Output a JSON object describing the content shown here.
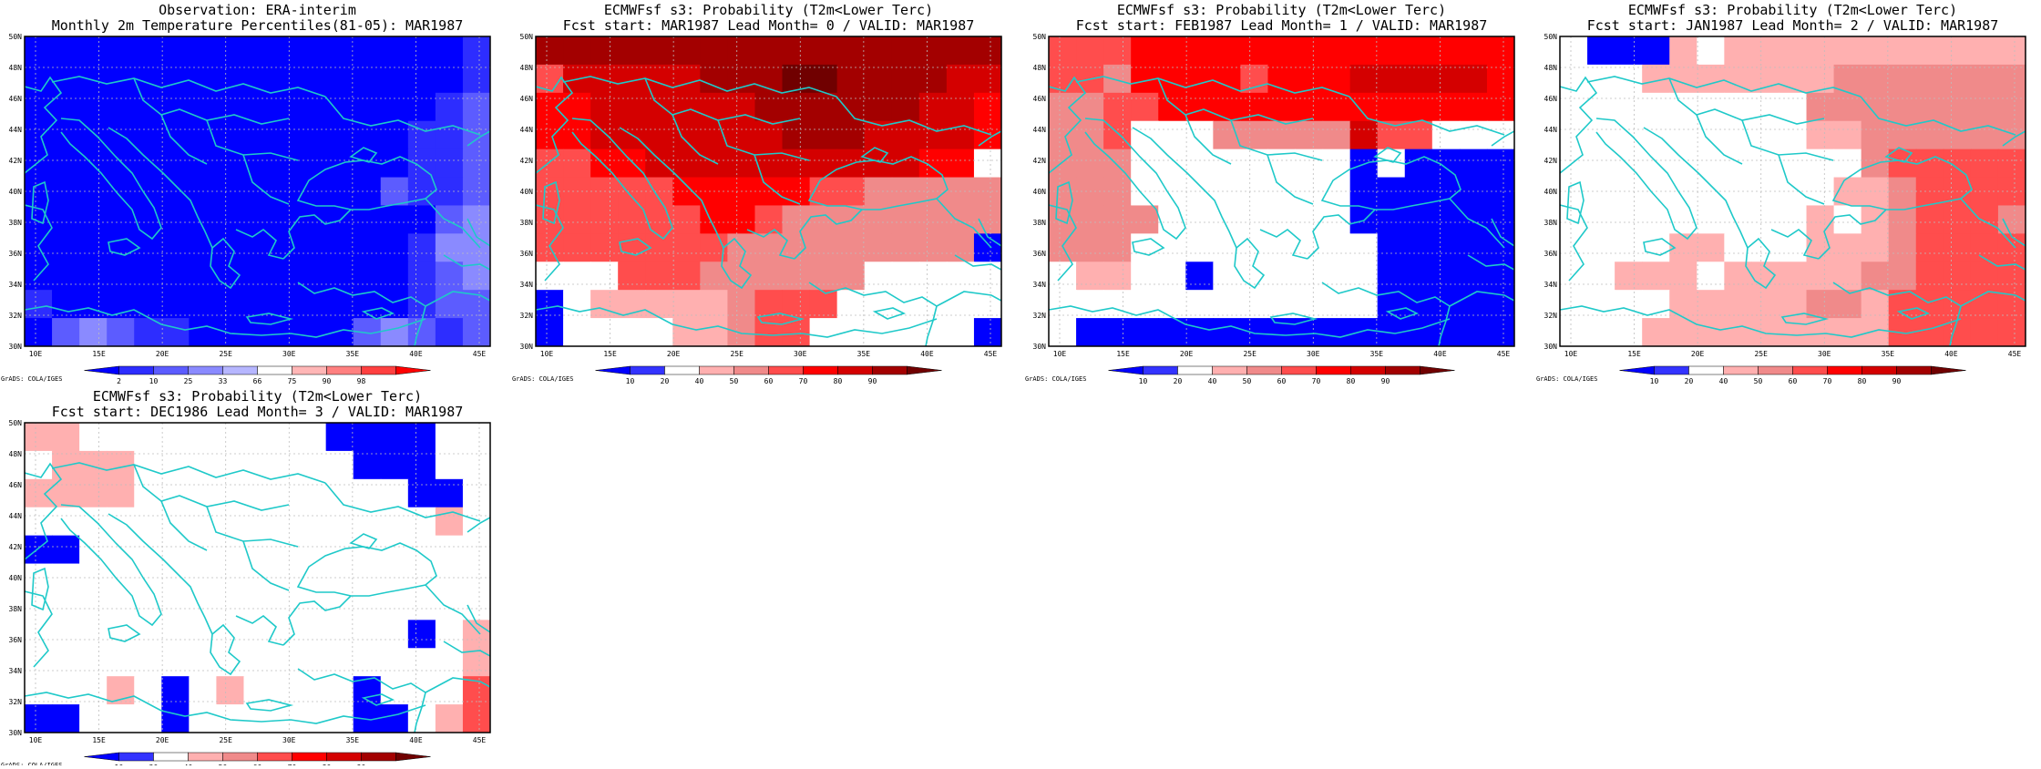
{
  "axes": {
    "lon_ticks": [
      "10E",
      "15E",
      "20E",
      "25E",
      "30E",
      "35E",
      "40E",
      "45E"
    ],
    "lat_ticks": [
      "30N",
      "32N",
      "34N",
      "36N",
      "38N",
      "40N",
      "42N",
      "44N",
      "46N",
      "48N",
      "50N"
    ]
  },
  "credit": "GrADS: COLA/IGES",
  "palettes": {
    "percentile": {
      "labels": [
        "2",
        "10",
        "25",
        "33",
        "66",
        "75",
        "90",
        "98"
      ],
      "colors": [
        "#0000ff",
        "#2d2dff",
        "#5c5cff",
        "#8a8aff",
        "#b6b6ff",
        "#ffffff",
        "#ffb6b6",
        "#ff8080",
        "#ff4040",
        "#ff0000"
      ]
    },
    "probability": {
      "labels": [
        "10",
        "20",
        "40",
        "50",
        "60",
        "70",
        "80",
        "90"
      ],
      "colors": [
        "#0000ff",
        "#3333ff",
        "#ffffff",
        "#ffb0b0",
        "#f08a8a",
        "#ff4d4d",
        "#ff0000",
        "#d40000",
        "#a30000",
        "#700000"
      ]
    }
  },
  "panels": [
    {
      "id": "obs",
      "title_lines": [
        "Observation: ERA-interim",
        "Monthly 2m Temperature Percentiles(81-05): MAR1987"
      ],
      "palette": "percentile",
      "grid": [
        [
          0,
          0,
          0,
          0,
          0,
          0,
          0,
          0,
          0,
          0,
          0,
          0,
          0,
          0,
          0,
          0,
          1
        ],
        [
          0,
          0,
          0,
          0,
          0,
          0,
          0,
          0,
          0,
          0,
          0,
          0,
          0,
          0,
          0,
          0,
          1
        ],
        [
          0,
          0,
          0,
          0,
          0,
          0,
          0,
          0,
          0,
          0,
          0,
          0,
          0,
          0,
          0,
          1,
          2
        ],
        [
          0,
          0,
          0,
          0,
          0,
          0,
          0,
          0,
          0,
          0,
          0,
          0,
          0,
          0,
          1,
          1,
          2
        ],
        [
          0,
          0,
          0,
          0,
          0,
          0,
          0,
          0,
          0,
          0,
          0,
          0,
          0,
          0,
          1,
          1,
          2
        ],
        [
          0,
          0,
          0,
          0,
          0,
          0,
          0,
          0,
          0,
          0,
          0,
          0,
          0,
          2,
          1,
          1,
          2
        ],
        [
          0,
          0,
          0,
          0,
          0,
          0,
          0,
          0,
          0,
          0,
          0,
          0,
          0,
          0,
          0,
          2,
          3
        ],
        [
          0,
          0,
          0,
          0,
          0,
          0,
          0,
          0,
          0,
          0,
          0,
          0,
          0,
          0,
          1,
          3,
          3
        ],
        [
          0,
          0,
          0,
          0,
          0,
          0,
          0,
          0,
          0,
          0,
          0,
          0,
          0,
          0,
          1,
          2,
          3
        ],
        [
          1,
          0,
          0,
          0,
          0,
          0,
          0,
          0,
          0,
          0,
          0,
          0,
          0,
          0,
          1,
          2,
          2
        ],
        [
          0,
          2,
          3,
          2,
          1,
          1,
          0,
          0,
          0,
          0,
          0,
          0,
          2,
          3,
          2,
          1,
          2
        ]
      ]
    },
    {
      "id": "lead0",
      "title_lines": [
        "ECMWFsf s3: Probability (T2m<Lower Terc)",
        "Fcst start: MAR1987   Lead Month= 0 / VALID: MAR1987"
      ],
      "palette": "probability",
      "grid": [
        [
          8,
          8,
          8,
          8,
          8,
          8,
          8,
          8,
          8,
          8,
          8,
          8,
          8,
          8,
          8,
          8,
          8
        ],
        [
          5,
          7,
          7,
          7,
          7,
          7,
          8,
          8,
          8,
          9,
          9,
          8,
          8,
          8,
          8,
          7,
          7
        ],
        [
          6,
          6,
          7,
          7,
          7,
          7,
          7,
          7,
          8,
          8,
          8,
          8,
          8,
          8,
          7,
          7,
          6
        ],
        [
          6,
          6,
          7,
          7,
          7,
          7,
          7,
          7,
          7,
          8,
          8,
          8,
          7,
          7,
          7,
          7,
          6
        ],
        [
          5,
          5,
          6,
          6,
          7,
          7,
          7,
          7,
          7,
          7,
          7,
          7,
          7,
          7,
          6,
          6,
          2
        ],
        [
          5,
          5,
          5,
          5,
          5,
          6,
          6,
          6,
          6,
          6,
          5,
          5,
          4,
          4,
          4,
          4,
          4
        ],
        [
          5,
          5,
          5,
          5,
          5,
          5,
          6,
          6,
          5,
          4,
          4,
          4,
          4,
          4,
          4,
          4,
          4
        ],
        [
          5,
          5,
          5,
          5,
          5,
          5,
          5,
          4,
          4,
          4,
          4,
          4,
          4,
          4,
          4,
          4,
          0
        ],
        [
          2,
          2,
          2,
          5,
          5,
          5,
          4,
          4,
          4,
          4,
          4,
          4,
          2,
          2,
          2,
          2,
          2
        ],
        [
          0,
          2,
          3,
          3,
          3,
          3,
          3,
          4,
          5,
          5,
          5,
          2,
          2,
          2,
          2,
          2,
          2
        ],
        [
          0,
          2,
          2,
          2,
          2,
          3,
          3,
          4,
          5,
          5,
          2,
          2,
          2,
          2,
          2,
          2,
          0
        ]
      ]
    },
    {
      "id": "lead1",
      "title_lines": [
        "ECMWFsf s3: Probability (T2m<Lower Terc)",
        "Fcst start: FEB1987   Lead Month= 1 / VALID: MAR1987"
      ],
      "palette": "probability",
      "grid": [
        [
          5,
          5,
          5,
          6,
          6,
          6,
          6,
          6,
          6,
          6,
          6,
          6,
          6,
          6,
          6,
          6,
          6
        ],
        [
          5,
          5,
          4,
          6,
          6,
          6,
          6,
          5,
          6,
          6,
          6,
          7,
          7,
          7,
          7,
          7,
          6
        ],
        [
          4,
          4,
          5,
          5,
          6,
          6,
          6,
          6,
          6,
          6,
          6,
          6,
          6,
          6,
          6,
          6,
          6
        ],
        [
          4,
          4,
          5,
          2,
          2,
          2,
          4,
          4,
          4,
          4,
          4,
          7,
          5,
          5,
          2,
          2,
          2
        ],
        [
          4,
          4,
          4,
          2,
          2,
          2,
          2,
          2,
          2,
          2,
          2,
          0,
          2,
          0,
          0,
          0,
          0
        ],
        [
          4,
          4,
          4,
          2,
          2,
          2,
          2,
          2,
          2,
          2,
          2,
          0,
          0,
          0,
          0,
          0,
          0
        ],
        [
          4,
          4,
          4,
          4,
          2,
          2,
          2,
          2,
          2,
          2,
          2,
          0,
          0,
          0,
          0,
          0,
          0
        ],
        [
          4,
          4,
          4,
          2,
          2,
          2,
          2,
          2,
          2,
          2,
          2,
          2,
          0,
          0,
          0,
          0,
          0
        ],
        [
          2,
          3,
          3,
          2,
          2,
          0,
          2,
          2,
          2,
          2,
          2,
          2,
          0,
          0,
          0,
          0,
          0
        ],
        [
          2,
          2,
          2,
          2,
          2,
          2,
          2,
          2,
          2,
          2,
          2,
          2,
          0,
          0,
          0,
          0,
          0
        ],
        [
          2,
          0,
          0,
          0,
          0,
          0,
          0,
          0,
          0,
          0,
          0,
          0,
          0,
          0,
          0,
          0,
          0
        ]
      ]
    },
    {
      "id": "lead2",
      "title_lines": [
        "ECMWFsf s3: Probability (T2m<Lower Terc)",
        "Fcst start: JAN1987   Lead Month= 2 / VALID: MAR1987"
      ],
      "palette": "probability",
      "grid": [
        [
          2,
          0,
          0,
          0,
          3,
          2,
          3,
          3,
          3,
          3,
          3,
          3,
          3,
          3,
          3,
          3,
          3
        ],
        [
          2,
          2,
          2,
          3,
          3,
          3,
          3,
          3,
          3,
          3,
          4,
          4,
          4,
          4,
          4,
          4,
          4
        ],
        [
          2,
          2,
          2,
          2,
          2,
          2,
          2,
          2,
          2,
          4,
          4,
          4,
          4,
          4,
          4,
          4,
          4
        ],
        [
          2,
          2,
          2,
          2,
          2,
          2,
          2,
          2,
          2,
          3,
          3,
          4,
          4,
          4,
          4,
          4,
          4
        ],
        [
          2,
          2,
          2,
          2,
          2,
          2,
          2,
          2,
          2,
          2,
          2,
          4,
          5,
          5,
          5,
          5,
          5
        ],
        [
          2,
          2,
          2,
          2,
          2,
          2,
          2,
          2,
          2,
          2,
          3,
          3,
          4,
          5,
          5,
          5,
          5
        ],
        [
          2,
          2,
          2,
          2,
          2,
          2,
          2,
          2,
          2,
          3,
          2,
          3,
          4,
          5,
          5,
          5,
          4
        ],
        [
          2,
          2,
          2,
          2,
          3,
          3,
          2,
          2,
          2,
          3,
          3,
          3,
          4,
          5,
          5,
          5,
          5
        ],
        [
          2,
          2,
          3,
          3,
          3,
          2,
          3,
          3,
          3,
          3,
          3,
          4,
          4,
          5,
          5,
          5,
          5
        ],
        [
          2,
          2,
          2,
          2,
          3,
          3,
          3,
          3,
          3,
          4,
          4,
          3,
          5,
          5,
          5,
          5,
          5
        ],
        [
          2,
          2,
          2,
          3,
          3,
          3,
          3,
          3,
          3,
          3,
          3,
          3,
          5,
          5,
          5,
          5,
          5
        ]
      ]
    },
    {
      "id": "lead3",
      "title_lines": [
        "ECMWFsf s3: Probability (T2m<Lower Terc)",
        "Fcst start: DEC1986   Lead Month= 3 / VALID: MAR1987"
      ],
      "palette": "probability",
      "grid": [
        [
          3,
          3,
          2,
          2,
          2,
          2,
          2,
          2,
          2,
          2,
          2,
          0,
          0,
          0,
          0,
          2,
          2
        ],
        [
          2,
          3,
          3,
          3,
          2,
          2,
          2,
          2,
          2,
          2,
          2,
          2,
          0,
          0,
          0,
          2,
          2
        ],
        [
          3,
          3,
          3,
          3,
          2,
          2,
          2,
          2,
          2,
          2,
          2,
          2,
          2,
          2,
          0,
          0,
          2
        ],
        [
          2,
          2,
          2,
          2,
          2,
          2,
          2,
          2,
          2,
          2,
          2,
          2,
          2,
          2,
          2,
          3,
          2
        ],
        [
          0,
          0,
          2,
          2,
          2,
          2,
          2,
          2,
          2,
          2,
          2,
          2,
          2,
          2,
          2,
          2,
          2
        ],
        [
          2,
          2,
          2,
          2,
          2,
          2,
          2,
          2,
          2,
          2,
          2,
          2,
          2,
          2,
          2,
          2,
          2
        ],
        [
          2,
          2,
          2,
          2,
          2,
          2,
          2,
          2,
          2,
          2,
          2,
          2,
          2,
          2,
          2,
          2,
          2
        ],
        [
          2,
          2,
          2,
          2,
          2,
          2,
          2,
          2,
          2,
          2,
          2,
          2,
          2,
          2,
          0,
          2,
          3
        ],
        [
          2,
          2,
          2,
          2,
          2,
          2,
          2,
          2,
          2,
          2,
          2,
          2,
          2,
          2,
          2,
          2,
          3
        ],
        [
          2,
          2,
          2,
          3,
          2,
          0,
          2,
          3,
          2,
          2,
          2,
          2,
          0,
          2,
          2,
          2,
          5
        ],
        [
          0,
          0,
          2,
          2,
          2,
          0,
          2,
          2,
          2,
          2,
          2,
          2,
          0,
          0,
          2,
          3,
          5
        ]
      ]
    }
  ]
}
